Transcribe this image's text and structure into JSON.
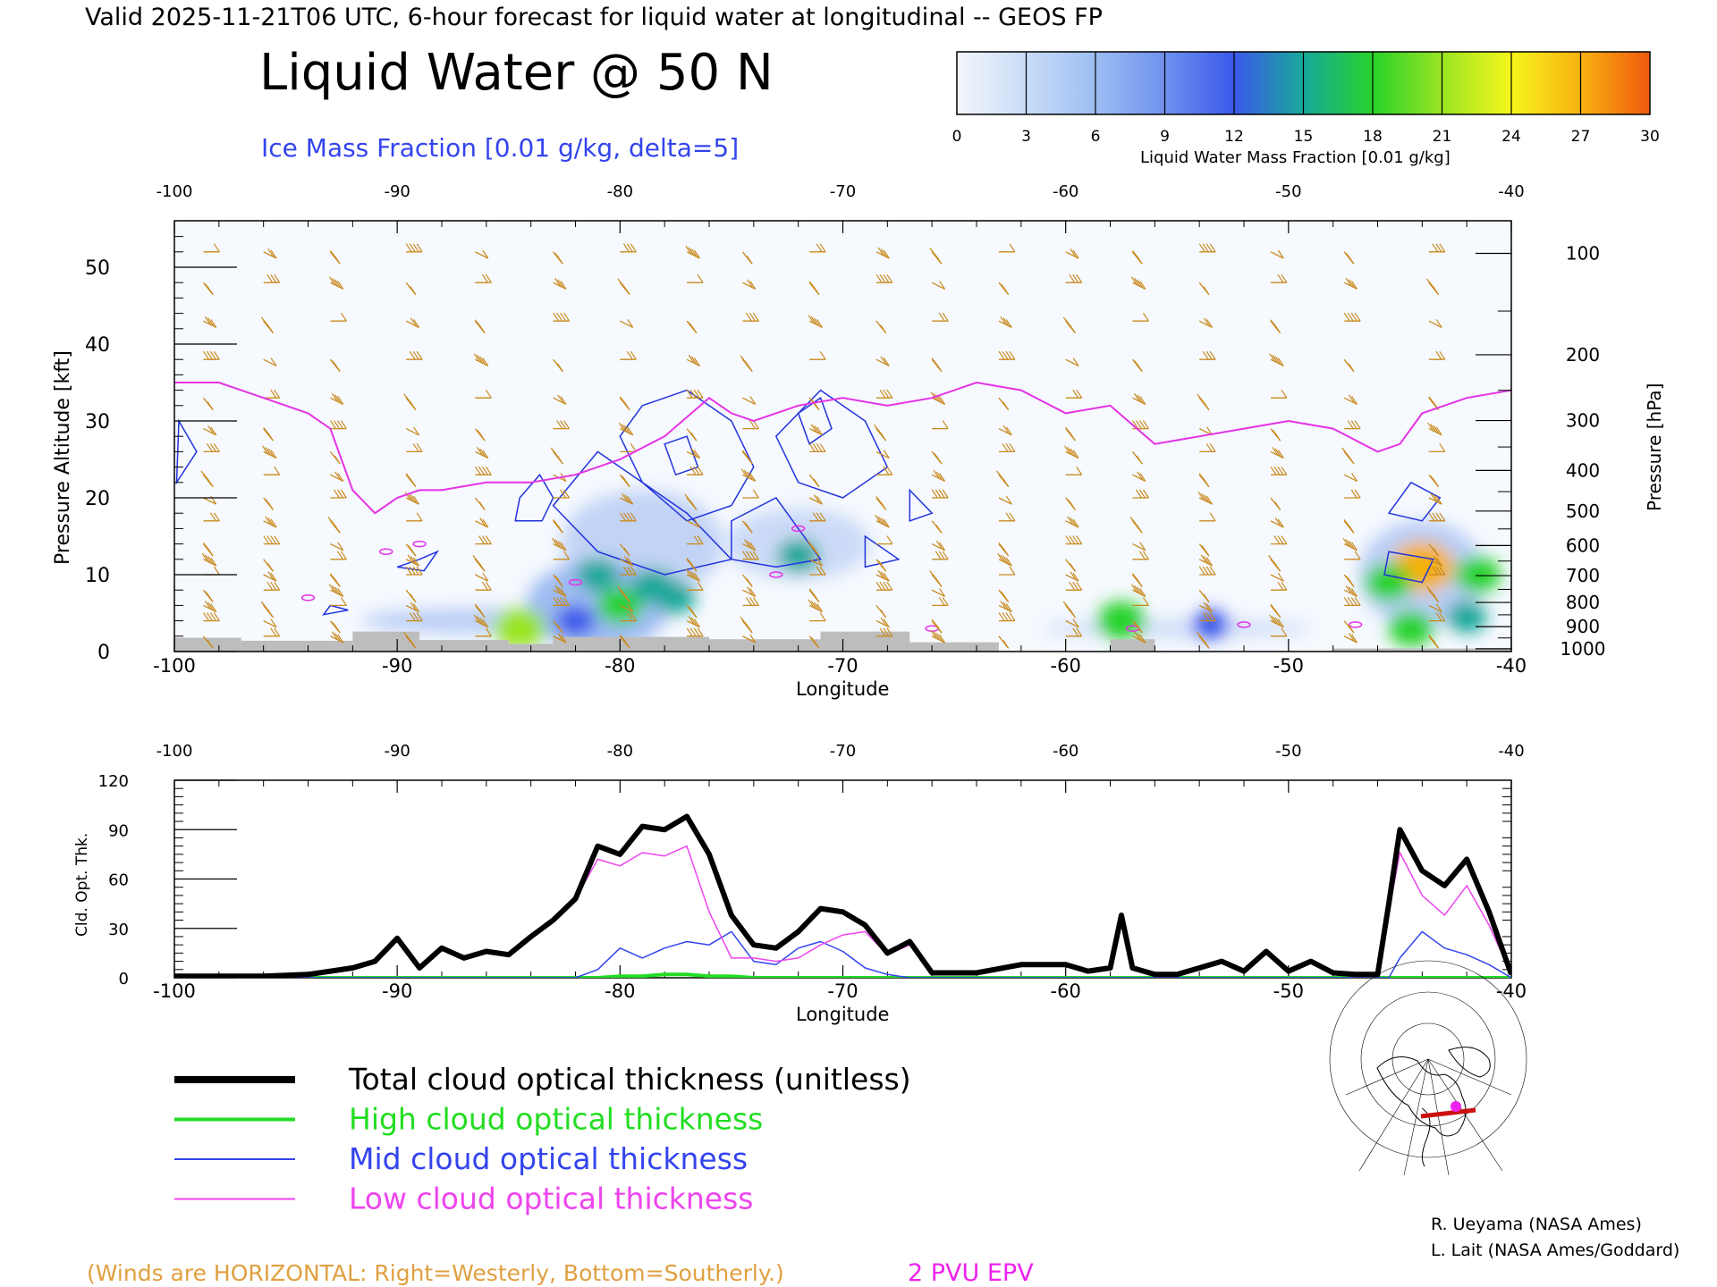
{
  "header": {
    "valid_line": "Valid 2025-11-21T06 UTC, 6-hour forecast for liquid water at longitudinal -- GEOS FP",
    "main_title": "Liquid Water @ 50 N",
    "subtitle": "Ice Mass Fraction [0.01 g/kg, delta=5]"
  },
  "colorbar": {
    "ticks": [
      "0",
      "3",
      "6",
      "9",
      "12",
      "15",
      "18",
      "21",
      "24",
      "27",
      "30"
    ],
    "label": "Liquid Water Mass Fraction [0.01 g/kg]",
    "colors": [
      "#f3f6fc",
      "#c9dcf7",
      "#9dbef3",
      "#6f91ee",
      "#3b58ea",
      "#18a89a",
      "#28d22a",
      "#9ae423",
      "#f5f51b",
      "#f7b111",
      "#f05a0d"
    ]
  },
  "top_panel": {
    "top_axis_ticks": [
      "-100",
      "-90",
      "-80",
      "-70",
      "-60",
      "-50",
      "-40"
    ],
    "bottom_axis_ticks": [
      "-100",
      "-90",
      "-80",
      "-70",
      "-60",
      "-50",
      "-40"
    ],
    "left_axis_label": "Pressure Altitude [kft]",
    "left_ticks": [
      "0",
      "10",
      "20",
      "30",
      "40",
      "50"
    ],
    "right_axis_label": "Pressure [hPa]",
    "right_ticks": [
      "100",
      "200",
      "300",
      "400",
      "500",
      "600",
      "700",
      "800",
      "900",
      "1000"
    ],
    "xlabel": "Longitude"
  },
  "bottom_panel": {
    "top_axis_ticks": [
      "-100",
      "-90",
      "-80",
      "-70",
      "-60",
      "-50",
      "-40"
    ],
    "bottom_axis_ticks": [
      "-100",
      "-90",
      "-80",
      "-70",
      "-60",
      "-50",
      "-40"
    ],
    "ylabel": "Cld. Opt. Thk.",
    "left_ticks": [
      "0",
      "30",
      "60",
      "90",
      "120"
    ],
    "xlabel": "Longitude"
  },
  "legend": {
    "items": [
      {
        "label": "Total cloud optical thickness (unitless)",
        "color": "#000000"
      },
      {
        "label": "High cloud optical thickness",
        "color": "#22dd22"
      },
      {
        "label": "Mid cloud optical thickness",
        "color": "#3344ee"
      },
      {
        "label": "Low cloud optical thickness",
        "color": "#ee44ee"
      }
    ]
  },
  "footer": {
    "winds_note": "(Winds are HORIZONTAL: Right=Westerly, Bottom=Southerly.)",
    "epv_label": "2 PVU EPV",
    "credit_1": "R. Ueyama (NASA Ames)",
    "credit_2": "L. Lait (NASA Ames/Goddard)"
  },
  "chart_data": [
    {
      "type": "heatmap",
      "title": "Liquid Water @ 50 N",
      "xlabel": "Longitude",
      "ylabel": "Pressure Altitude [kft]",
      "xlim": [
        -100,
        -40
      ],
      "ylim": [
        0,
        55
      ],
      "ticks_y_right_hpa": [
        100,
        200,
        300,
        400,
        500,
        600,
        700,
        800,
        900,
        1000
      ],
      "colorbar_range": [
        0,
        30
      ],
      "colorbar_units": "Liquid Water Mass Fraction [0.01 g/kg]",
      "liquid_water_blobs": [
        {
          "lon": -84.5,
          "kft": 3.0,
          "value": 21
        },
        {
          "lon": -81.0,
          "kft": 10.0,
          "value": 15
        },
        {
          "lon": -80.0,
          "kft": 6.0,
          "value": 17
        },
        {
          "lon": -78.5,
          "kft": 8.5,
          "value": 16
        },
        {
          "lon": -77.5,
          "kft": 7.0,
          "value": 14
        },
        {
          "lon": -82.0,
          "kft": 4.0,
          "value": 13
        },
        {
          "lon": -72.0,
          "kft": 12.5,
          "value": 15
        },
        {
          "lon": -57.5,
          "kft": 4.0,
          "value": 19
        },
        {
          "lon": -53.5,
          "kft": 3.5,
          "value": 12
        },
        {
          "lon": -44.0,
          "kft": 11.0,
          "value": 28
        },
        {
          "lon": -45.5,
          "kft": 9.0,
          "value": 18
        },
        {
          "lon": -41.5,
          "kft": 10.0,
          "value": 17
        },
        {
          "lon": -44.5,
          "kft": 3.0,
          "value": 17
        },
        {
          "lon": -42.0,
          "kft": 4.5,
          "value": 14
        }
      ],
      "epv_2pvu_line": {
        "lon": [
          -100,
          -98,
          -96,
          -94,
          -93,
          -92,
          -91,
          -90,
          -89,
          -88,
          -86,
          -84,
          -82,
          -80,
          -78,
          -76,
          -75,
          -74,
          -72,
          -70,
          -68,
          -66,
          -64,
          -62,
          -60,
          -58,
          -56,
          -54,
          -52,
          -50,
          -48,
          -46,
          -45,
          -44,
          -42,
          -40
        ],
        "kft": [
          35,
          35,
          33,
          31,
          29,
          21,
          18,
          20,
          21,
          21,
          22,
          22,
          23,
          25,
          28,
          33,
          31,
          30,
          32,
          33,
          32,
          33,
          35,
          34,
          31,
          32,
          27,
          28,
          29,
          30,
          29,
          26,
          27,
          31,
          33,
          34
        ]
      }
    },
    {
      "type": "line",
      "xlabel": "Longitude",
      "ylabel": "Cld. Opt. Thk.",
      "xlim": [
        -100,
        -40
      ],
      "ylim": [
        0,
        120
      ],
      "x": [
        -100,
        -96,
        -94,
        -92,
        -91,
        -90,
        -89,
        -88,
        -87,
        -86,
        -85,
        -84,
        -83,
        -82,
        -81,
        -80,
        -79,
        -78,
        -77,
        -76,
        -75,
        -74,
        -73,
        -72,
        -71,
        -70,
        -69,
        -68,
        -67,
        -66,
        -64,
        -62,
        -60,
        -59,
        -58,
        -57.5,
        -57,
        -56,
        -55,
        -54,
        -53,
        -52,
        -51,
        -50,
        -49,
        -48,
        -47,
        -46,
        -45.5,
        -45,
        -44,
        -43,
        -42,
        -41,
        -40
      ],
      "series": [
        {
          "name": "Total cloud optical thickness (unitless)",
          "values": [
            1,
            1,
            2,
            6,
            10,
            24,
            6,
            18,
            12,
            16,
            14,
            25,
            35,
            48,
            80,
            75,
            92,
            90,
            98,
            75,
            38,
            20,
            18,
            28,
            42,
            40,
            32,
            15,
            22,
            3,
            3,
            8,
            8,
            4,
            6,
            38,
            6,
            2,
            2,
            6,
            10,
            4,
            16,
            4,
            10,
            3,
            2,
            2,
            45,
            90,
            65,
            56,
            72,
            40,
            2
          ]
        },
        {
          "name": "High cloud optical thickness",
          "values": [
            0,
            0,
            0,
            0,
            0,
            0,
            0,
            0,
            0,
            0,
            0,
            0,
            0,
            0,
            0,
            1,
            1,
            2,
            2,
            1,
            1,
            0,
            0,
            0,
            0,
            0,
            0,
            0,
            0,
            0,
            0,
            0,
            0,
            0,
            0,
            0,
            0,
            0,
            0,
            0,
            0,
            0,
            0,
            0,
            0,
            0,
            0,
            0,
            0,
            0,
            0,
            0,
            0,
            0,
            0
          ]
        },
        {
          "name": "Mid cloud optical thickness",
          "values": [
            0,
            0,
            0,
            0,
            0,
            0,
            0,
            0,
            0,
            0,
            0,
            0,
            0,
            0,
            5,
            18,
            12,
            18,
            22,
            20,
            28,
            10,
            8,
            18,
            22,
            16,
            6,
            2,
            0,
            0,
            0,
            0,
            0,
            0,
            0,
            0,
            0,
            0,
            0,
            0,
            0,
            0,
            0,
            0,
            0,
            0,
            0,
            0,
            0,
            12,
            28,
            18,
            14,
            8,
            0
          ]
        },
        {
          "name": "Low cloud optical thickness",
          "values": [
            1,
            1,
            2,
            6,
            10,
            24,
            6,
            18,
            12,
            16,
            14,
            25,
            35,
            48,
            72,
            68,
            76,
            74,
            80,
            40,
            12,
            12,
            10,
            12,
            20,
            26,
            28,
            14,
            20,
            3,
            3,
            8,
            8,
            4,
            6,
            38,
            6,
            2,
            2,
            6,
            10,
            4,
            16,
            4,
            10,
            3,
            2,
            2,
            40,
            76,
            50,
            38,
            56,
            32,
            2
          ]
        }
      ]
    }
  ]
}
